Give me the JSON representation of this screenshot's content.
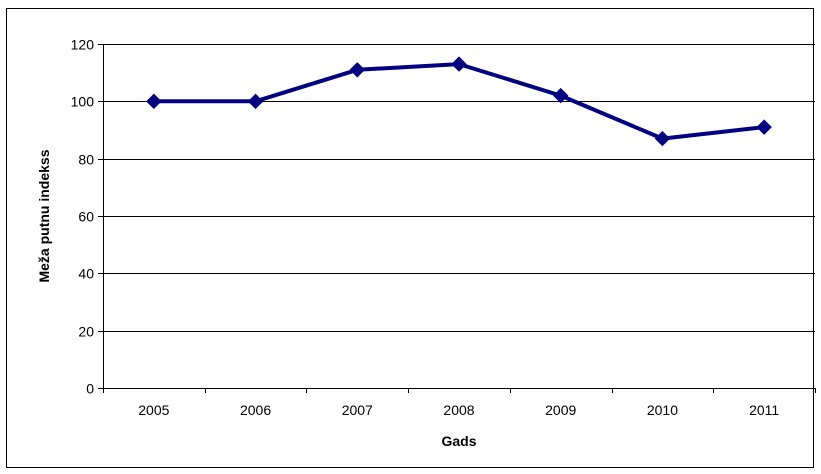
{
  "chart_data": {
    "type": "line",
    "title": "",
    "xlabel": "Gads",
    "ylabel": "Meža putnu indekss",
    "categories": [
      "2005",
      "2006",
      "2007",
      "2008",
      "2009",
      "2010",
      "2011"
    ],
    "series": [
      {
        "values": [
          100,
          100,
          111,
          113,
          102,
          87,
          91
        ],
        "color": "#000080",
        "marker": "diamond"
      }
    ],
    "ylim": [
      0,
      120
    ],
    "yticks": [
      0,
      20,
      40,
      60,
      80,
      100,
      120
    ],
    "grid": "horizontal",
    "legend": "none"
  }
}
